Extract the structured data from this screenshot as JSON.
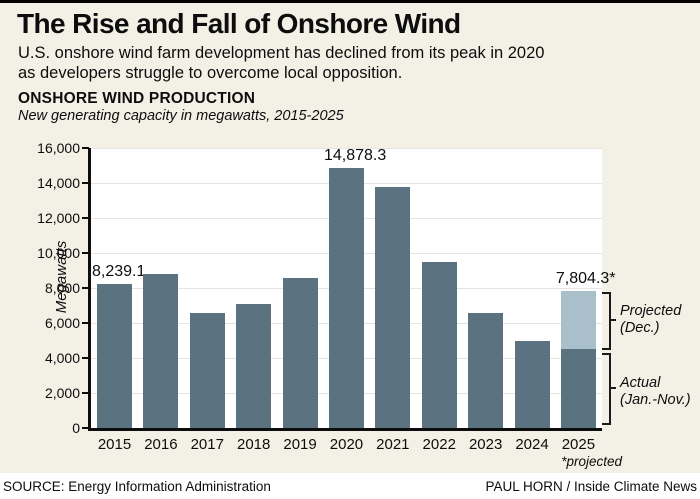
{
  "page": {
    "title": "The Rise and Fall of Onshore Wind",
    "subtitle_lines": [
      "U.S. onshore wind farm development has declined from its peak in 2020",
      "as developers struggle to overcome local opposition."
    ]
  },
  "footer": {
    "source": "SOURCE: Energy Information Administration",
    "credit": "PAUL HORN / Inside Climate News"
  },
  "colors": {
    "background": "#f3f1e6",
    "bar_dark": "#5b7380",
    "bar_light": "#a9bfc9",
    "gridline": "#e4e4e2",
    "axis": "#0d0d0d"
  },
  "chart_data": {
    "type": "bar",
    "title": "ONSHORE WIND PRODUCTION",
    "subtitle": "New generating capacity in megawatts, 2015-2025",
    "ylabel": "Megawatts",
    "ylim": [
      0,
      16000
    ],
    "ytick_interval": 2000,
    "grid": true,
    "categories": [
      "2015",
      "2016",
      "2017",
      "2018",
      "2019",
      "2020",
      "2021",
      "2022",
      "2023",
      "2024",
      "2025"
    ],
    "series": [
      {
        "name": "Actual (Jan.-Nov.)",
        "color": "#5b7380",
        "values": [
          8239.1,
          8800,
          6600,
          7100,
          8600,
          14878.3,
          13800,
          9500,
          6600,
          5000,
          4500
        ]
      },
      {
        "name": "Projected (Dec.)",
        "color": "#a9bfc9",
        "values": [
          0,
          0,
          0,
          0,
          0,
          0,
          0,
          0,
          0,
          0,
          3304.3
        ]
      }
    ],
    "yticks": [
      {
        "label": "0",
        "value": 0
      },
      {
        "label": "2,000",
        "value": 2000
      },
      {
        "label": "4,000",
        "value": 4000
      },
      {
        "label": "6,000",
        "value": 6000
      },
      {
        "label": "8,000",
        "value": 8000
      },
      {
        "label": "10,000",
        "value": 10000
      },
      {
        "label": "12,000",
        "value": 12000
      },
      {
        "label": "14,000",
        "value": 14000
      },
      {
        "label": "16,000",
        "value": 16000
      }
    ],
    "data_labels": {
      "2015": "8,239.1",
      "2020": "14,878.3",
      "2025": "7,804.3*"
    },
    "bracket_labels": {
      "projected": {
        "line1": "Projected",
        "line2": "(Dec.)"
      },
      "actual": {
        "line1": "Actual",
        "line2": "(Jan.-Nov.)"
      }
    },
    "footnote": "*projected"
  }
}
